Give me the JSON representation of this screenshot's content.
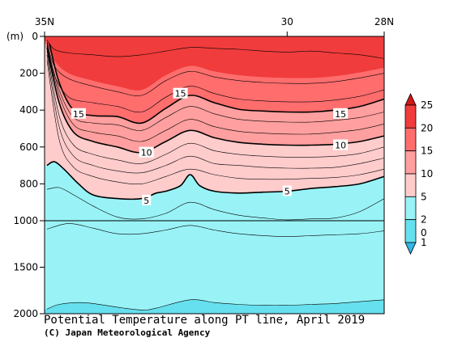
{
  "chart_data": {
    "type": "contour",
    "title": "Potential Temperature along PT line, April 2019",
    "credit": "(C) Japan Meteorological Agency",
    "x_ticks": [
      "35N",
      "30",
      "28N"
    ],
    "x_tick_positions": [
      35,
      30,
      28
    ],
    "xlim": [
      35,
      28
    ],
    "y_unit": "(m)",
    "y_ticks_upper": [
      "0",
      "200",
      "400",
      "600",
      "800",
      "1000"
    ],
    "y_ticks_lower": [
      "1500",
      "2000"
    ],
    "y_upper_values": [
      0,
      200,
      400,
      600,
      800,
      1000
    ],
    "y_lower_values": [
      1500,
      2000
    ],
    "colorbar": {
      "levels": [
        "0",
        "1",
        "2",
        "5",
        "10",
        "15",
        "20",
        "25"
      ],
      "colors": [
        "#33b5e5",
        "#66e0ee",
        "#99f3f6",
        "#ffcccc",
        "#ff9f9f",
        "#ff6d6d",
        "#f03c3c",
        "#d01818"
      ]
    },
    "isotherm_labels": [
      {
        "text": "15",
        "lat": 34.3,
        "depth": 420
      },
      {
        "text": "15",
        "lat": 32.2,
        "depth": 310
      },
      {
        "text": "15",
        "lat": 28.9,
        "depth": 420
      },
      {
        "text": "10",
        "lat": 32.9,
        "depth": 630
      },
      {
        "text": "10",
        "lat": 28.9,
        "depth": 590
      },
      {
        "text": "5",
        "lat": 32.9,
        "depth": 890
      },
      {
        "text": "5",
        "lat": 30.0,
        "depth": 840
      }
    ],
    "isotherms": {
      "bold_15": [
        [
          34.9,
          40
        ],
        [
          34.7,
          250
        ],
        [
          34.4,
          400
        ],
        [
          34.0,
          430
        ],
        [
          33.5,
          435
        ],
        [
          33.0,
          470
        ],
        [
          32.5,
          390
        ],
        [
          32.0,
          320
        ],
        [
          31.5,
          360
        ],
        [
          31.0,
          395
        ],
        [
          30.5,
          405
        ],
        [
          30.0,
          410
        ],
        [
          29.5,
          410
        ],
        [
          29.0,
          400
        ],
        [
          28.5,
          380
        ],
        [
          28.0,
          340
        ]
      ],
      "bold_10": [
        [
          34.95,
          60
        ],
        [
          34.7,
          360
        ],
        [
          34.4,
          520
        ],
        [
          34.0,
          570
        ],
        [
          33.5,
          600
        ],
        [
          33.0,
          630
        ],
        [
          32.5,
          570
        ],
        [
          32.0,
          510
        ],
        [
          31.5,
          550
        ],
        [
          31.0,
          575
        ],
        [
          30.5,
          585
        ],
        [
          30.0,
          590
        ],
        [
          29.5,
          590
        ],
        [
          29.0,
          585
        ],
        [
          28.5,
          570
        ],
        [
          28.0,
          540
        ]
      ],
      "bold_5": [
        [
          34.95,
          700
        ],
        [
          34.8,
          680
        ],
        [
          34.6,
          720
        ],
        [
          34.3,
          800
        ],
        [
          34.0,
          860
        ],
        [
          33.5,
          880
        ],
        [
          33.0,
          880
        ],
        [
          32.7,
          850
        ],
        [
          32.5,
          840
        ],
        [
          32.2,
          810
        ],
        [
          32.0,
          750
        ],
        [
          31.8,
          810
        ],
        [
          31.5,
          840
        ],
        [
          31.0,
          850
        ],
        [
          30.5,
          845
        ],
        [
          30.0,
          840
        ],
        [
          29.5,
          825
        ],
        [
          29.0,
          815
        ],
        [
          28.5,
          800
        ],
        [
          28.0,
          760
        ]
      ],
      "red_thin": [
        [
          [
            34.95,
            20
          ],
          [
            34.8,
            70
          ],
          [
            34.5,
            90
          ],
          [
            34.0,
            100
          ],
          [
            33.5,
            110
          ],
          [
            33.0,
            100
          ],
          [
            32.5,
            80
          ],
          [
            32.0,
            60
          ],
          [
            31.5,
            65
          ],
          [
            31.0,
            70
          ],
          [
            30.5,
            80
          ],
          [
            30.0,
            85
          ],
          [
            29.5,
            80
          ],
          [
            29.0,
            90
          ],
          [
            28.5,
            100
          ],
          [
            28.0,
            120
          ]
        ],
        [
          [
            34.95,
            30
          ],
          [
            34.8,
            160
          ],
          [
            34.5,
            230
          ],
          [
            34.0,
            270
          ],
          [
            33.5,
            300
          ],
          [
            33.0,
            320
          ],
          [
            32.5,
            240
          ],
          [
            32.0,
            190
          ],
          [
            31.5,
            220
          ],
          [
            31.0,
            240
          ],
          [
            30.5,
            250
          ],
          [
            30.0,
            255
          ],
          [
            29.5,
            255
          ],
          [
            29.0,
            245
          ],
          [
            28.5,
            225
          ],
          [
            28.0,
            200
          ]
        ],
        [
          [
            34.95,
            35
          ],
          [
            34.8,
            210
          ],
          [
            34.5,
            330
          ],
          [
            34.0,
            360
          ],
          [
            33.5,
            380
          ],
          [
            33.0,
            410
          ],
          [
            32.5,
            330
          ],
          [
            32.0,
            270
          ],
          [
            31.5,
            310
          ],
          [
            31.0,
            340
          ],
          [
            30.5,
            350
          ],
          [
            30.0,
            355
          ],
          [
            29.5,
            355
          ],
          [
            29.0,
            345
          ],
          [
            28.5,
            325
          ],
          [
            28.0,
            290
          ]
        ]
      ],
      "pink_thin": [
        [
          [
            34.95,
            45
          ],
          [
            34.7,
            290
          ],
          [
            34.4,
            440
          ],
          [
            34.0,
            470
          ],
          [
            33.5,
            480
          ],
          [
            33.0,
            510
          ],
          [
            32.5,
            440
          ],
          [
            32.0,
            380
          ],
          [
            31.5,
            420
          ],
          [
            31.0,
            450
          ],
          [
            30.5,
            460
          ],
          [
            30.0,
            465
          ],
          [
            29.5,
            465
          ],
          [
            29.0,
            455
          ],
          [
            28.5,
            440
          ],
          [
            28.0,
            410
          ]
        ],
        [
          [
            34.95,
            50
          ],
          [
            34.7,
            320
          ],
          [
            34.4,
            480
          ],
          [
            34.0,
            520
          ],
          [
            33.5,
            540
          ],
          [
            33.0,
            570
          ],
          [
            32.5,
            510
          ],
          [
            32.0,
            450
          ],
          [
            31.5,
            490
          ],
          [
            31.0,
            515
          ],
          [
            30.5,
            525
          ],
          [
            30.0,
            530
          ],
          [
            29.5,
            530
          ],
          [
            29.0,
            520
          ],
          [
            28.5,
            505
          ],
          [
            28.0,
            475
          ]
        ],
        [
          [
            34.95,
            80
          ],
          [
            34.7,
            430
          ],
          [
            34.4,
            590
          ],
          [
            34.0,
            640
          ],
          [
            33.5,
            670
          ],
          [
            33.0,
            690
          ],
          [
            32.5,
            640
          ],
          [
            32.0,
            580
          ],
          [
            31.5,
            620
          ],
          [
            31.0,
            640
          ],
          [
            30.5,
            650
          ],
          [
            30.0,
            655
          ],
          [
            29.5,
            655
          ],
          [
            29.0,
            650
          ],
          [
            28.5,
            635
          ],
          [
            28.0,
            600
          ]
        ],
        [
          [
            34.95,
            100
          ],
          [
            34.7,
            490
          ],
          [
            34.4,
            650
          ],
          [
            34.0,
            700
          ],
          [
            33.5,
            730
          ],
          [
            33.0,
            740
          ],
          [
            32.5,
            700
          ],
          [
            32.0,
            650
          ],
          [
            31.5,
            690
          ],
          [
            31.0,
            700
          ],
          [
            30.5,
            710
          ],
          [
            30.0,
            715
          ],
          [
            29.5,
            715
          ],
          [
            29.0,
            710
          ],
          [
            28.5,
            690
          ],
          [
            28.0,
            660
          ]
        ],
        [
          [
            34.95,
            130
          ],
          [
            34.7,
            560
          ],
          [
            34.4,
            710
          ],
          [
            34.0,
            760
          ],
          [
            33.5,
            790
          ],
          [
            33.0,
            800
          ],
          [
            32.5,
            760
          ],
          [
            32.0,
            720
          ],
          [
            31.5,
            750
          ],
          [
            31.0,
            770
          ],
          [
            30.5,
            775
          ],
          [
            30.0,
            775
          ],
          [
            29.5,
            770
          ],
          [
            29.0,
            765
          ],
          [
            28.5,
            750
          ],
          [
            28.0,
            720
          ]
        ]
      ],
      "cyan_thin": [
        [
          [
            34.95,
            830
          ],
          [
            34.7,
            820
          ],
          [
            34.4,
            860
          ],
          [
            34.0,
            920
          ],
          [
            33.5,
            980
          ],
          [
            33.0,
            990
          ],
          [
            32.5,
            960
          ],
          [
            32.0,
            900
          ],
          [
            31.5,
            940
          ],
          [
            31.0,
            970
          ],
          [
            30.5,
            985
          ],
          [
            30.0,
            995
          ],
          [
            29.5,
            990
          ],
          [
            29.0,
            985
          ],
          [
            28.5,
            950
          ],
          [
            28.0,
            880
          ]
        ],
        [
          [
            34.95,
            1090
          ],
          [
            34.5,
            1030
          ],
          [
            34.0,
            1080
          ],
          [
            33.5,
            1140
          ],
          [
            33.0,
            1140
          ],
          [
            32.5,
            1100
          ],
          [
            32.0,
            1050
          ],
          [
            31.5,
            1100
          ],
          [
            31.0,
            1140
          ],
          [
            30.5,
            1160
          ],
          [
            30.0,
            1170
          ],
          [
            29.5,
            1160
          ],
          [
            29.0,
            1150
          ],
          [
            28.5,
            1140
          ],
          [
            28.0,
            1110
          ]
        ],
        [
          [
            34.95,
            1950
          ],
          [
            34.7,
            1900
          ],
          [
            34.3,
            1880
          ],
          [
            34.0,
            1890
          ],
          [
            33.5,
            1930
          ],
          [
            33.0,
            1960
          ],
          [
            32.7,
            1940
          ],
          [
            32.0,
            1850
          ],
          [
            31.5,
            1880
          ],
          [
            31.0,
            1900
          ],
          [
            30.5,
            1910
          ],
          [
            30.0,
            1910
          ],
          [
            29.5,
            1900
          ],
          [
            29.0,
            1890
          ],
          [
            28.5,
            1870
          ],
          [
            28.0,
            1850
          ]
        ]
      ],
      "zone_2_top": [
        [
          34.95,
          1080
        ],
        [
          34.5,
          1020
        ],
        [
          34.0,
          1070
        ],
        [
          33.5,
          1130
        ],
        [
          33.0,
          1130
        ],
        [
          32.5,
          1090
        ],
        [
          32.0,
          1040
        ],
        [
          31.5,
          1090
        ],
        [
          31.0,
          1130
        ],
        [
          30.5,
          1150
        ],
        [
          30.0,
          1160
        ],
        [
          29.5,
          1150
        ],
        [
          29.0,
          1140
        ],
        [
          28.5,
          1130
        ],
        [
          28.0,
          1100
        ]
      ],
      "zone_1_top": [
        [
          34.95,
          1950
        ],
        [
          34.7,
          1900
        ],
        [
          34.3,
          1880
        ],
        [
          34.0,
          1890
        ],
        [
          33.5,
          1930
        ],
        [
          33.0,
          1960
        ],
        [
          32.7,
          1940
        ],
        [
          32.0,
          1850
        ],
        [
          31.5,
          1880
        ],
        [
          31.0,
          1900
        ],
        [
          30.5,
          1910
        ],
        [
          30.0,
          1910
        ],
        [
          29.5,
          1900
        ],
        [
          29.0,
          1890
        ],
        [
          28.5,
          1870
        ],
        [
          28.0,
          1850
        ]
      ],
      "zone_20_bottom": [
        [
          34.95,
          25
        ],
        [
          34.8,
          130
        ],
        [
          34.5,
          200
        ],
        [
          34.0,
          240
        ],
        [
          33.5,
          270
        ],
        [
          33.0,
          290
        ],
        [
          32.5,
          210
        ],
        [
          32.0,
          160
        ],
        [
          31.5,
          190
        ],
        [
          31.0,
          210
        ],
        [
          30.5,
          220
        ],
        [
          30.0,
          225
        ],
        [
          29.5,
          225
        ],
        [
          29.0,
          215
        ],
        [
          28.5,
          195
        ],
        [
          28.0,
          170
        ]
      ]
    }
  }
}
